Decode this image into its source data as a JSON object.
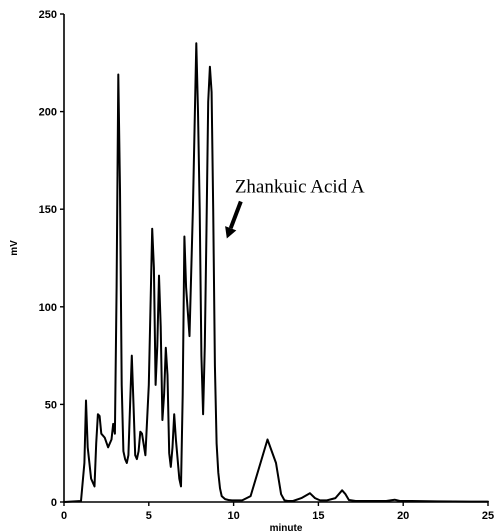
{
  "chart_data": {
    "type": "line",
    "xlabel": "minute",
    "ylabel": "mV",
    "xlim": [
      0,
      25
    ],
    "ylim": [
      0,
      250
    ],
    "xticks": [
      0,
      5,
      10,
      15,
      20,
      25
    ],
    "yticks": [
      0,
      50,
      100,
      150,
      200,
      250
    ],
    "grid": false,
    "annotation": {
      "text": "Zhankuic Acid A",
      "points_to_x": 9.6,
      "points_to_y": 135
    },
    "series": [
      {
        "x": [
          0,
          1.0,
          1.2,
          1.3,
          1.4,
          1.6,
          1.8,
          1.9,
          2.0,
          2.1,
          2.2,
          2.4,
          2.6,
          2.8,
          2.9,
          3.0,
          3.1,
          3.2,
          3.3,
          3.4,
          3.5,
          3.6,
          3.7,
          3.8,
          3.9,
          4.0,
          4.1,
          4.2,
          4.3,
          4.4,
          4.5,
          4.6,
          4.8,
          5.0,
          5.2,
          5.3,
          5.4,
          5.5,
          5.6,
          5.7,
          5.8,
          5.9,
          6.0,
          6.1,
          6.2,
          6.3,
          6.4,
          6.5,
          6.6,
          6.8,
          6.9,
          7.0,
          7.1,
          7.2,
          7.4,
          7.6,
          7.8,
          7.9,
          8.0,
          8.1,
          8.2,
          8.3,
          8.4,
          8.5,
          8.6,
          8.7,
          8.8,
          8.9,
          9.0,
          9.1,
          9.2,
          9.3,
          9.5,
          9.7,
          9.9,
          10.1,
          10.5,
          11.0,
          12.0,
          12.5,
          12.8,
          13.0,
          13.2,
          13.5,
          14.0,
          14.5,
          14.8,
          15.1,
          15.5,
          16.0,
          16.4,
          16.6,
          16.8,
          17.2,
          18.0,
          19.0,
          19.5,
          19.8,
          20.5,
          22.0,
          24.0,
          25.0
        ],
        "y": [
          0,
          0.5,
          20,
          52,
          28,
          12,
          8,
          30,
          45,
          44,
          35,
          33,
          28,
          32,
          40,
          35,
          110,
          219,
          160,
          60,
          26,
          22,
          20,
          24,
          50,
          75,
          50,
          24,
          22,
          26,
          36,
          35,
          24,
          60,
          140,
          120,
          60,
          80,
          116,
          90,
          42,
          55,
          79,
          65,
          25,
          18,
          28,
          45,
          32,
          12,
          8,
          55,
          136,
          110,
          85,
          150,
          235,
          200,
          150,
          75,
          45,
          80,
          140,
          205,
          223,
          210,
          150,
          70,
          30,
          15,
          7,
          3,
          1.5,
          1,
          0.8,
          0.8,
          0.8,
          3,
          32,
          20,
          4,
          0.8,
          0.5,
          0.5,
          2,
          4.5,
          2,
          0.8,
          0.8,
          2,
          6,
          4,
          1,
          0.5,
          0.5,
          0.5,
          1.2,
          0.5,
          0.5,
          0.3,
          0.2,
          0.2
        ]
      }
    ]
  }
}
